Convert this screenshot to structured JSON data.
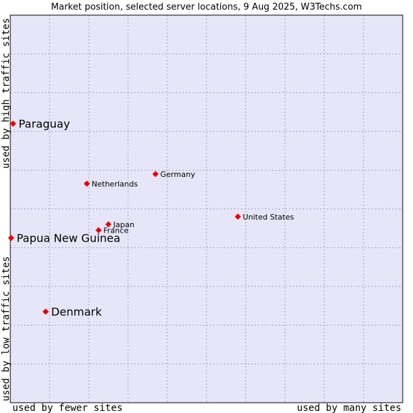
{
  "chart_data": {
    "type": "scatter",
    "title": "Market position, selected server locations, 9 Aug 2025, W3Techs.com",
    "xlabel_left": "used by fewer sites",
    "xlabel_right": "used by many sites",
    "ylabel_bottom": "used by low traffic sites",
    "ylabel_top": "used by high traffic sites",
    "xlim": [
      0,
      100
    ],
    "ylim": [
      0,
      100
    ],
    "grid": true,
    "colors": {
      "plot_bg": "#e6e6f8",
      "marker": "#ee0000",
      "border": "#000000"
    },
    "points": [
      {
        "name": "Paraguay",
        "x": 0.7,
        "y": 72,
        "highlight": true
      },
      {
        "name": "Papua New Guinea",
        "x": 0.2,
        "y": 42.5,
        "highlight": true
      },
      {
        "name": "Denmark",
        "x": 9,
        "y": 23.5,
        "highlight": true
      },
      {
        "name": "Germany",
        "x": 37,
        "y": 59,
        "highlight": false
      },
      {
        "name": "Netherlands",
        "x": 19.5,
        "y": 56.5,
        "highlight": false
      },
      {
        "name": "United States",
        "x": 58,
        "y": 48,
        "highlight": false
      },
      {
        "name": "Japan",
        "x": 25,
        "y": 46,
        "highlight": false
      },
      {
        "name": "France",
        "x": 22.5,
        "y": 44.5,
        "highlight": false
      }
    ]
  }
}
